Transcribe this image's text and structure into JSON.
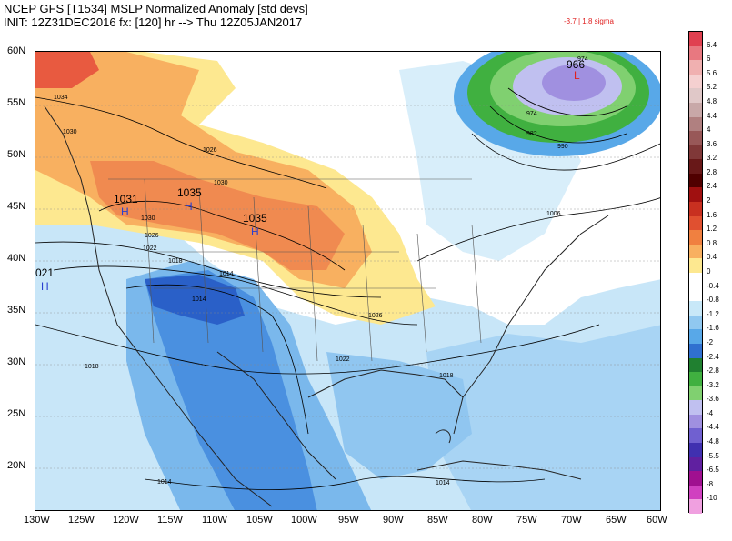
{
  "title_line1": "NCEP GFS [T1534] MSLP Normalized Anomaly [std devs]",
  "title_line2": "INIT: 12Z31DEC2016 fx: [120] hr --> Thu 12Z05JAN2017",
  "range_text": "-3.7 | 1.8 sigma",
  "lat_labels": [
    "60N",
    "55N",
    "50N",
    "45N",
    "40N",
    "35N",
    "30N",
    "25N",
    "20N"
  ],
  "lon_labels": [
    "130W",
    "125W",
    "120W",
    "115W",
    "110W",
    "105W",
    "100W",
    "95W",
    "90W",
    "85W",
    "80W",
    "75W",
    "70W",
    "65W",
    "60W"
  ],
  "colorbar_labels": [
    "6.4",
    "6",
    "5.6",
    "5.2",
    "4.8",
    "4.4",
    "4",
    "3.6",
    "3.2",
    "2.8",
    "2.4",
    "2",
    "1.6",
    "1.2",
    "0.8",
    "0.4",
    "0",
    "-0.4",
    "-0.8",
    "-1.2",
    "-1.6",
    "-2",
    "-2.4",
    "-2.8",
    "-3.2",
    "-3.6",
    "-4",
    "-4.4",
    "-4.8",
    "-5.5",
    "-6.5",
    "-8",
    "-10"
  ],
  "colorbar_colors": [
    "#e04050",
    "#e87880",
    "#f0b0b0",
    "#f5d0d0",
    "#e0c8c8",
    "#c8a8a8",
    "#b08080",
    "#985858",
    "#803838",
    "#681818",
    "#500000",
    "#a01010",
    "#c83020",
    "#e05030",
    "#f08040",
    "#f8b060",
    "#fde890",
    "#ffffff",
    "#ffffff",
    "#c8e8f8",
    "#90c8f0",
    "#58a8e8",
    "#3070d0",
    "#208030",
    "#40b040",
    "#80d070",
    "#c0c0f0",
    "#a090e0",
    "#7060d0",
    "#4030b0",
    "#6020a0",
    "#a01090",
    "#d040c0",
    "#f0a0e0"
  ],
  "pressure_centers": [
    {
      "type": "H",
      "value": "1031"
    },
    {
      "type": "H",
      "value": "1035"
    },
    {
      "type": "H",
      "value": "1035"
    },
    {
      "type": "H",
      "value": "021"
    },
    {
      "type": "L",
      "value": "966"
    }
  ],
  "isobar_labels": [
    "1034",
    "1030",
    "1026",
    "1030",
    "1026",
    "1022",
    "1018",
    "1014",
    "1014",
    "1030",
    "1026",
    "1022",
    "1018",
    "1018",
    "1014",
    "1014",
    "974",
    "974",
    "982",
    "990",
    "1006"
  ]
}
